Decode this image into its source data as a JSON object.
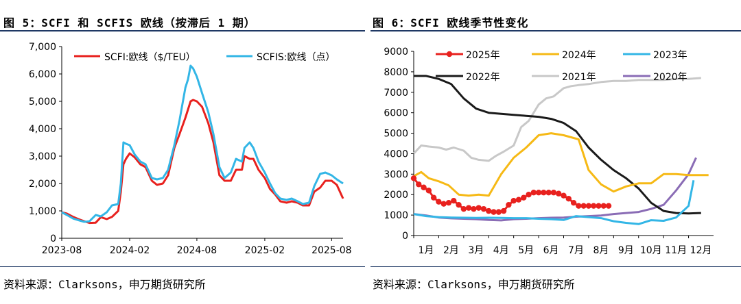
{
  "figure_left": {
    "caption": "图 5：SCFI 和 SCFIS 欧线（按滞后 1 期）",
    "source": "资料来源：Clarksons，申万期货研究所"
  },
  "figure_right": {
    "caption": "图 6：SCFI 欧线季节性变化",
    "source": "资料来源：Clarksons，申万期货研究所"
  },
  "colors": {
    "rule": "#1f3864"
  },
  "chart_data": [
    {
      "type": "line",
      "title": "",
      "xlabel": "",
      "ylabel": "",
      "xlim": [
        "2023-08",
        "2025-09"
      ],
      "ylim": [
        0,
        7000
      ],
      "yticks": [
        0,
        1000,
        2000,
        3000,
        4000,
        5000,
        6000,
        7000
      ],
      "ytick_labels": [
        "0",
        "1,000",
        "2,000",
        "3,000",
        "4,000",
        "5,000",
        "6,000",
        "7,000"
      ],
      "xticks": [
        "2023-08",
        "2024-02",
        "2024-08",
        "2025-02",
        "2025-08"
      ],
      "grid": false,
      "legend": "top",
      "series": [
        {
          "name": "SCFI:欧线（$/TEU）",
          "color": "#e8211e",
          "points": [
            [
              "2023-08-01",
              950
            ],
            [
              "2023-08-15",
              900
            ],
            [
              "2023-09-01",
              780
            ],
            [
              "2023-09-15",
              700
            ],
            [
              "2023-10-01",
              620
            ],
            [
              "2023-10-15",
              560
            ],
            [
              "2023-11-01",
              570
            ],
            [
              "2023-11-15",
              770
            ],
            [
              "2023-12-01",
              700
            ],
            [
              "2023-12-15",
              780
            ],
            [
              "2024-01-01",
              1000
            ],
            [
              "2024-01-08",
              1700
            ],
            [
              "2024-01-15",
              2700
            ],
            [
              "2024-01-22",
              2900
            ],
            [
              "2024-02-01",
              3100
            ],
            [
              "2024-02-15",
              2950
            ],
            [
              "2024-03-01",
              2700
            ],
            [
              "2024-03-15",
              2600
            ],
            [
              "2024-04-01",
              2100
            ],
            [
              "2024-04-15",
              1950
            ],
            [
              "2024-05-01",
              2000
            ],
            [
              "2024-05-15",
              2300
            ],
            [
              "2024-06-01",
              3300
            ],
            [
              "2024-06-15",
              3800
            ],
            [
              "2024-07-01",
              4400
            ],
            [
              "2024-07-08",
              4700
            ],
            [
              "2024-07-15",
              5000
            ],
            [
              "2024-07-22",
              5050
            ],
            [
              "2024-08-01",
              5000
            ],
            [
              "2024-08-15",
              4800
            ],
            [
              "2024-09-01",
              4200
            ],
            [
              "2024-09-15",
              3500
            ],
            [
              "2024-10-01",
              2300
            ],
            [
              "2024-10-15",
              2100
            ],
            [
              "2024-11-01",
              2100
            ],
            [
              "2024-11-15",
              2500
            ],
            [
              "2024-12-01",
              2500
            ],
            [
              "2024-12-08",
              3000
            ],
            [
              "2024-12-22",
              2900
            ],
            [
              "2025-01-01",
              2900
            ],
            [
              "2025-01-15",
              2500
            ],
            [
              "2025-02-01",
              2200
            ],
            [
              "2025-02-15",
              1800
            ],
            [
              "2025-03-01",
              1600
            ],
            [
              "2025-03-15",
              1350
            ],
            [
              "2025-04-01",
              1300
            ],
            [
              "2025-04-15",
              1350
            ],
            [
              "2025-05-01",
              1300
            ],
            [
              "2025-05-15",
              1200
            ],
            [
              "2025-06-01",
              1200
            ],
            [
              "2025-06-15",
              1700
            ],
            [
              "2025-07-01",
              1850
            ],
            [
              "2025-07-15",
              2100
            ],
            [
              "2025-08-01",
              2100
            ],
            [
              "2025-08-15",
              1950
            ],
            [
              "2025-09-01",
              1450
            ]
          ]
        },
        {
          "name": "SCFIS:欧线（点）",
          "color": "#33b6e6",
          "points": [
            [
              "2023-08-01",
              950
            ],
            [
              "2023-08-15",
              850
            ],
            [
              "2023-09-01",
              720
            ],
            [
              "2023-09-15",
              660
            ],
            [
              "2023-10-01",
              600
            ],
            [
              "2023-10-15",
              620
            ],
            [
              "2023-11-01",
              850
            ],
            [
              "2023-11-15",
              800
            ],
            [
              "2023-12-01",
              950
            ],
            [
              "2023-12-15",
              1200
            ],
            [
              "2024-01-01",
              1250
            ],
            [
              "2024-01-08",
              2000
            ],
            [
              "2024-01-15",
              3500
            ],
            [
              "2024-01-22",
              3450
            ],
            [
              "2024-02-01",
              3400
            ],
            [
              "2024-02-15",
              3050
            ],
            [
              "2024-03-01",
              2800
            ],
            [
              "2024-03-15",
              2700
            ],
            [
              "2024-04-01",
              2200
            ],
            [
              "2024-04-15",
              2150
            ],
            [
              "2024-05-01",
              2200
            ],
            [
              "2024-05-15",
              2500
            ],
            [
              "2024-06-01",
              3400
            ],
            [
              "2024-06-15",
              4300
            ],
            [
              "2024-07-01",
              5500
            ],
            [
              "2024-07-08",
              5800
            ],
            [
              "2024-07-15",
              6300
            ],
            [
              "2024-07-22",
              6200
            ],
            [
              "2024-08-01",
              5900
            ],
            [
              "2024-08-15",
              5300
            ],
            [
              "2024-09-01",
              4600
            ],
            [
              "2024-09-15",
              3800
            ],
            [
              "2024-10-01",
              2600
            ],
            [
              "2024-10-15",
              2200
            ],
            [
              "2024-11-01",
              2400
            ],
            [
              "2024-11-15",
              2900
            ],
            [
              "2024-12-01",
              2800
            ],
            [
              "2024-12-08",
              3300
            ],
            [
              "2024-12-22",
              3500
            ],
            [
              "2025-01-01",
              3300
            ],
            [
              "2025-01-15",
              2800
            ],
            [
              "2025-02-01",
              2400
            ],
            [
              "2025-02-15",
              2000
            ],
            [
              "2025-03-01",
              1650
            ],
            [
              "2025-03-15",
              1450
            ],
            [
              "2025-04-01",
              1400
            ],
            [
              "2025-04-15",
              1450
            ],
            [
              "2025-05-01",
              1350
            ],
            [
              "2025-05-15",
              1250
            ],
            [
              "2025-06-01",
              1300
            ],
            [
              "2025-06-15",
              1900
            ],
            [
              "2025-07-01",
              2350
            ],
            [
              "2025-07-15",
              2400
            ],
            [
              "2025-08-01",
              2300
            ],
            [
              "2025-08-15",
              2150
            ],
            [
              "2025-09-01",
              2000
            ]
          ]
        }
      ]
    },
    {
      "type": "line",
      "title": "",
      "xlabel": "",
      "ylabel": "",
      "xlim": [
        1,
        13
      ],
      "ylim": [
        0,
        9000
      ],
      "yticks": [
        0,
        1000,
        2000,
        3000,
        4000,
        5000,
        6000,
        7000,
        8000,
        9000
      ],
      "xtick_labels": [
        "1月",
        "2月",
        "3月",
        "4月",
        "5月",
        "6月",
        "7月",
        "8月",
        "9月",
        "10月",
        "11月",
        "12月"
      ],
      "grid": false,
      "legend": "top",
      "series": [
        {
          "name": "2025年",
          "color": "#e8211e",
          "marker": true,
          "x": [
            1.0,
            1.2,
            1.4,
            1.6,
            1.8,
            2.0,
            2.2,
            2.4,
            2.6,
            2.8,
            3.0,
            3.2,
            3.4,
            3.6,
            3.8,
            4.0,
            4.2,
            4.4,
            4.6,
            4.8,
            5.0,
            5.2,
            5.4,
            5.6,
            5.8,
            6.0,
            6.2,
            6.4,
            6.6,
            6.8,
            7.0,
            7.2,
            7.4,
            7.6,
            7.8,
            8.0,
            8.2,
            8.4,
            8.6,
            8.8
          ],
          "y": [
            2800,
            2500,
            2350,
            2200,
            1850,
            1650,
            1550,
            1600,
            1700,
            1500,
            1300,
            1350,
            1300,
            1350,
            1300,
            1200,
            1150,
            1150,
            1200,
            1500,
            1700,
            1750,
            1850,
            2000,
            2100,
            2100,
            2100,
            2100,
            2100,
            2050,
            1950,
            1800,
            1600,
            1450,
            1450,
            1450,
            1450,
            1450,
            1450,
            1450
          ]
        },
        {
          "name": "2024年",
          "color": "#f6b915",
          "marker": false,
          "x": [
            1.0,
            1.3,
            1.6,
            2.0,
            2.4,
            2.8,
            3.2,
            3.6,
            4.0,
            4.5,
            5.0,
            5.5,
            6.0,
            6.5,
            7.0,
            7.3,
            7.6,
            8.0,
            8.5,
            9.0,
            9.5,
            10.0,
            10.5,
            11.0,
            11.5,
            12.0,
            12.4,
            12.8
          ],
          "y": [
            2900,
            3100,
            2800,
            2650,
            2450,
            2000,
            1950,
            2000,
            1950,
            3000,
            3800,
            4300,
            4900,
            5000,
            4900,
            4800,
            4700,
            3200,
            2500,
            2150,
            2400,
            2550,
            2550,
            3000,
            3000,
            2950,
            2950,
            2950
          ]
        },
        {
          "name": "2023年",
          "color": "#33b6e6",
          "marker": false,
          "x": [
            1.0,
            1.5,
            2.0,
            2.5,
            3.0,
            3.5,
            4.0,
            4.5,
            5.0,
            5.5,
            6.0,
            6.5,
            7.0,
            7.5,
            8.0,
            8.5,
            9.0,
            9.5,
            10.0,
            10.5,
            11.0,
            11.5,
            12.0,
            12.2
          ],
          "y": [
            1050,
            950,
            900,
            880,
            870,
            860,
            870,
            860,
            850,
            850,
            820,
            800,
            760,
            950,
            900,
            850,
            700,
            620,
            560,
            750,
            720,
            880,
            1450,
            2700
          ]
        },
        {
          "name": "2022年",
          "color": "#1a1a1a",
          "marker": false,
          "x": [
            1.0,
            1.5,
            2.0,
            2.5,
            3.0,
            3.5,
            4.0,
            4.5,
            5.0,
            5.5,
            6.0,
            6.5,
            7.0,
            7.5,
            8.0,
            8.5,
            9.0,
            9.5,
            10.0,
            10.5,
            11.0,
            11.5,
            12.0,
            12.5
          ],
          "y": [
            7800,
            7800,
            7650,
            7400,
            6700,
            6200,
            6000,
            5950,
            5900,
            5850,
            5800,
            5700,
            5500,
            5100,
            4300,
            3700,
            3200,
            2800,
            2300,
            1600,
            1200,
            1100,
            1080,
            1100
          ]
        },
        {
          "name": "2021年",
          "color": "#c8c8c8",
          "marker": false,
          "x": [
            1.0,
            1.3,
            1.6,
            2.0,
            2.3,
            2.6,
            3.0,
            3.3,
            3.6,
            4.0,
            4.3,
            4.6,
            5.0,
            5.3,
            5.6,
            6.0,
            6.3,
            6.6,
            7.0,
            7.3,
            7.6,
            8.0,
            8.5,
            9.0,
            9.5,
            10.0,
            10.5,
            11.0,
            11.5,
            12.0,
            12.5
          ],
          "y": [
            4000,
            4400,
            4350,
            4300,
            4200,
            4300,
            4150,
            3800,
            3700,
            3650,
            3900,
            4100,
            4400,
            5300,
            5600,
            6400,
            6700,
            6800,
            7200,
            7300,
            7350,
            7400,
            7500,
            7550,
            7550,
            7600,
            7600,
            7600,
            7650,
            7650,
            7700
          ]
        },
        {
          "name": "2020年",
          "color": "#8a6cb5",
          "marker": false,
          "x": [
            1.0,
            1.5,
            2.0,
            2.5,
            3.0,
            3.5,
            4.0,
            4.5,
            5.0,
            5.5,
            6.0,
            6.5,
            7.0,
            7.5,
            8.0,
            8.5,
            9.0,
            9.5,
            10.0,
            10.5,
            11.0,
            11.5,
            12.0,
            12.3
          ],
          "y": [
            1050,
            980,
            880,
            840,
            820,
            800,
            760,
            740,
            800,
            820,
            850,
            870,
            880,
            920,
            950,
            980,
            1050,
            1100,
            1150,
            1300,
            1500,
            2200,
            3000,
            3800
          ]
        }
      ]
    }
  ]
}
